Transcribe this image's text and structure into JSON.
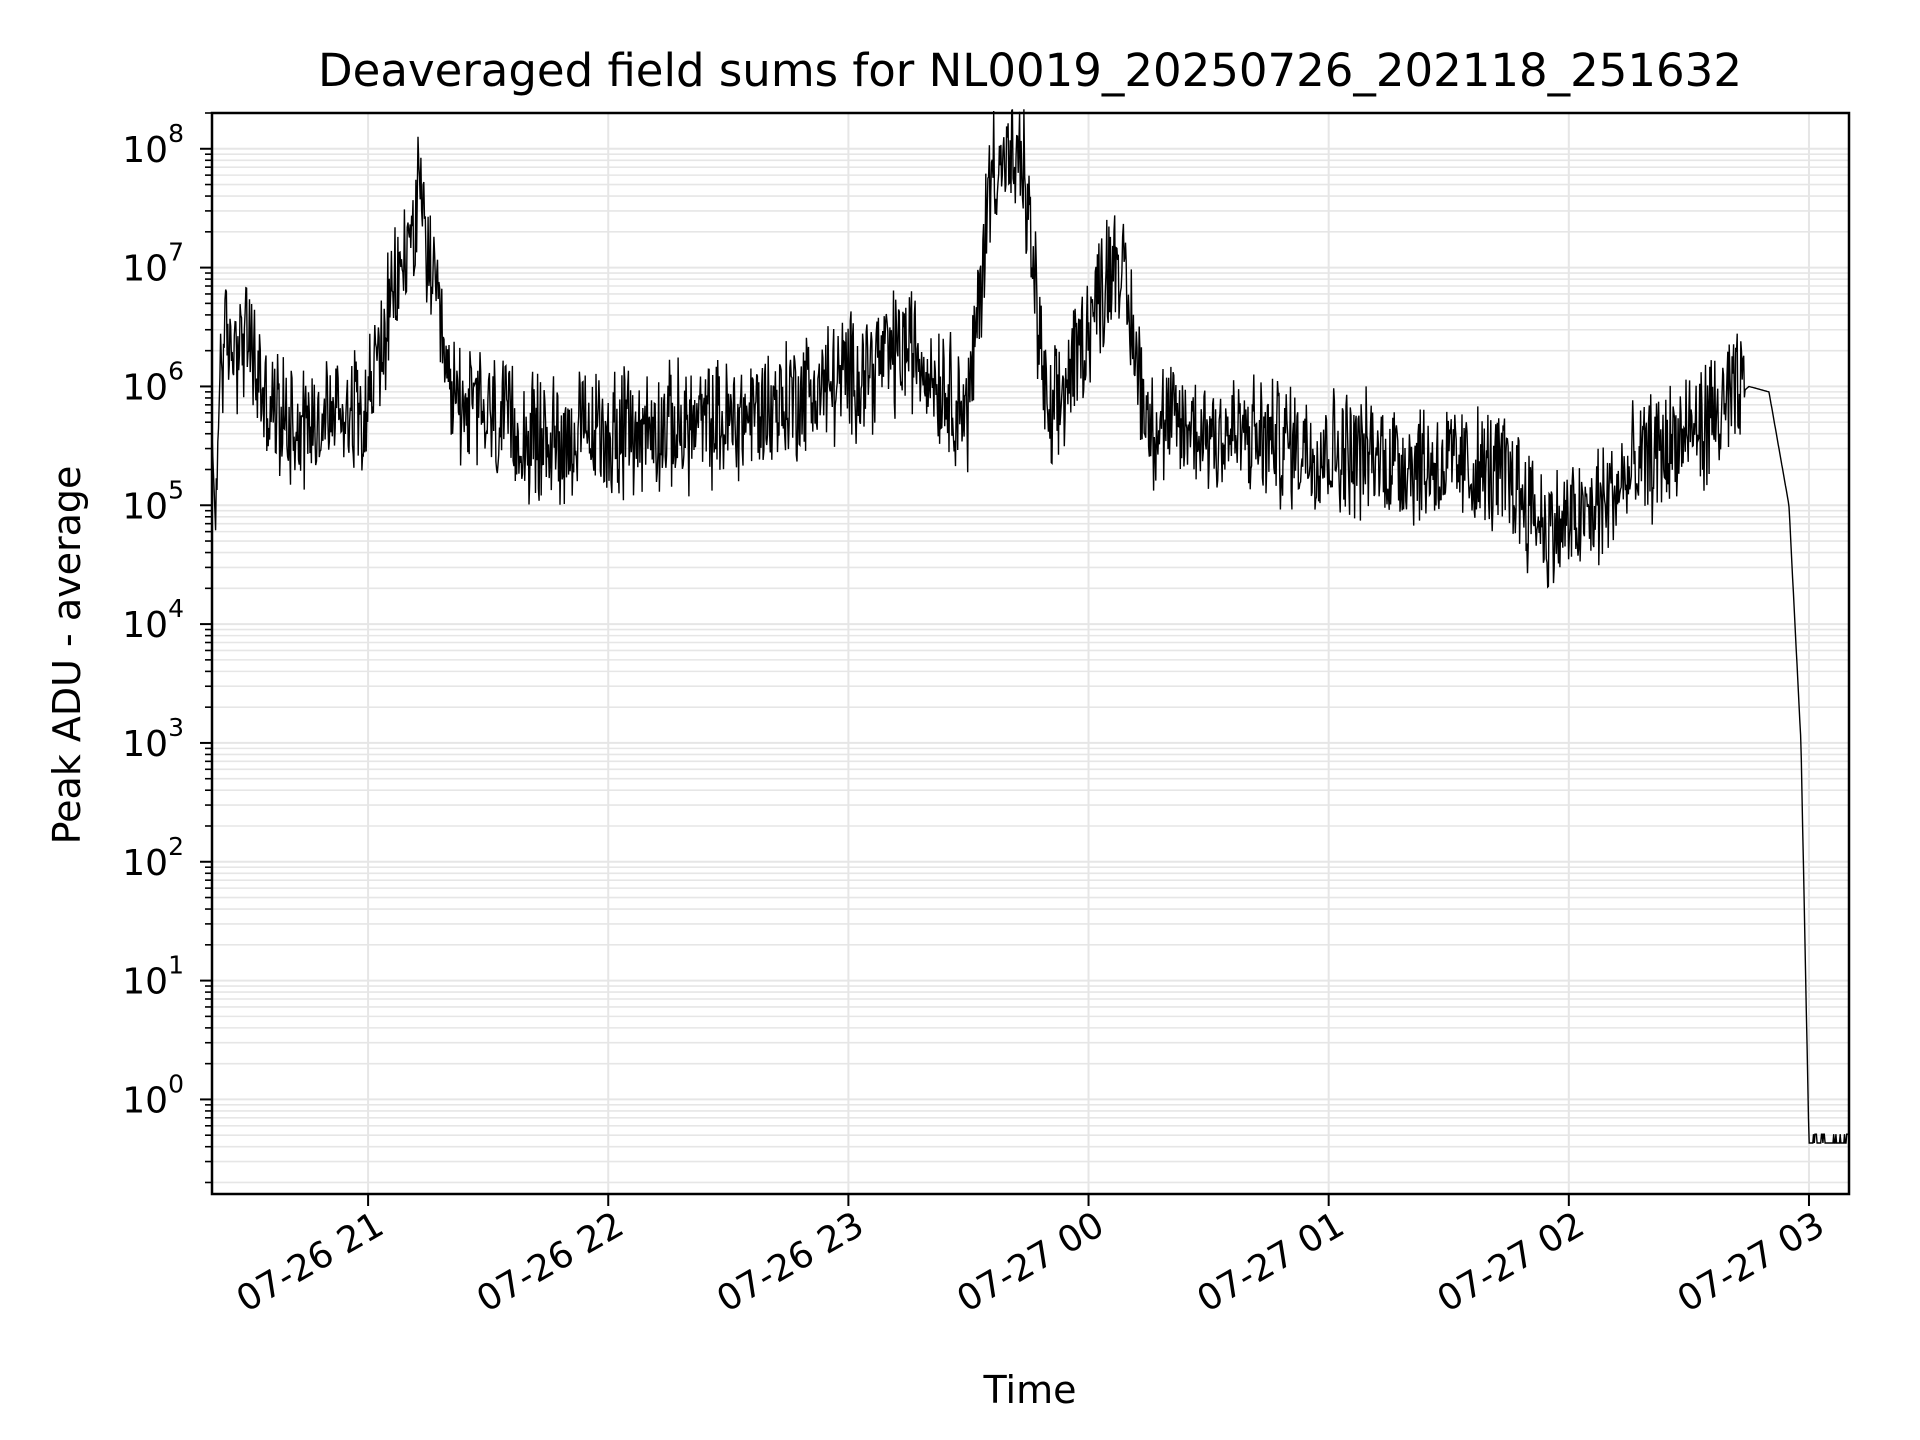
{
  "chart_data": {
    "type": "line",
    "title": "Deaveraged field sums for NL0019_20250726_202118_251632",
    "xlabel": "Time",
    "ylabel": "Peak ADU - average",
    "yscale": "log",
    "grid": true,
    "line_color": "#000000",
    "grid_color": "#e6e6e6",
    "xlim": [
      "07-26 20:21",
      "07-27 03:10"
    ],
    "ylim": [
      0.16,
      200000000
    ],
    "x_ticks": [
      {
        "at": "07-26 21:00",
        "label": "07-26 21"
      },
      {
        "at": "07-26 22:00",
        "label": "07-26 22"
      },
      {
        "at": "07-26 23:00",
        "label": "07-26 23"
      },
      {
        "at": "07-27 00:00",
        "label": "07-27 00"
      },
      {
        "at": "07-27 01:00",
        "label": "07-27 01"
      },
      {
        "at": "07-27 02:00",
        "label": "07-27 02"
      },
      {
        "at": "07-27 03:00",
        "label": "07-27 03"
      }
    ],
    "y_ticks": [
      {
        "value": 1,
        "base": "10",
        "exp": "0"
      },
      {
        "value": 10,
        "base": "10",
        "exp": "1"
      },
      {
        "value": 100,
        "base": "10",
        "exp": "2"
      },
      {
        "value": 1000,
        "base": "10",
        "exp": "3"
      },
      {
        "value": 10000,
        "base": "10",
        "exp": "4"
      },
      {
        "value": 100000,
        "base": "10",
        "exp": "5"
      },
      {
        "value": 1000000,
        "base": "10",
        "exp": "6"
      },
      {
        "value": 10000000,
        "base": "10",
        "exp": "7"
      },
      {
        "value": 100000000,
        "base": "10",
        "exp": "8"
      }
    ],
    "series": [
      {
        "name": "",
        "approximate_shape": [
          [
            "07-26 20:21",
            400000
          ],
          [
            "07-26 20:22",
            50000
          ],
          [
            "07-26 20:23",
            2000000
          ],
          [
            "07-26 20:30",
            2500000
          ],
          [
            "07-26 20:35",
            600000
          ],
          [
            "07-26 20:45",
            500000
          ],
          [
            "07-26 21:00",
            800000
          ],
          [
            "07-26 21:13",
            38000000
          ],
          [
            "07-26 21:20",
            900000
          ],
          [
            "07-26 21:40",
            350000
          ],
          [
            "07-26 22:00",
            400000
          ],
          [
            "07-26 22:30",
            500000
          ],
          [
            "07-26 23:00",
            1200000
          ],
          [
            "07-26 23:15",
            2200000
          ],
          [
            "07-26 23:30",
            600000
          ],
          [
            "07-26 23:36",
            85000000
          ],
          [
            "07-26 23:44",
            60000000
          ],
          [
            "07-26 23:50",
            400000
          ],
          [
            "07-27 00:07",
            15000000
          ],
          [
            "07-27 00:15",
            500000
          ],
          [
            "07-27 00:45",
            350000
          ],
          [
            "07-27 01:15",
            250000
          ],
          [
            "07-27 01:45",
            180000
          ],
          [
            "07-27 01:55",
            60000
          ],
          [
            "07-27 02:05",
            80000
          ],
          [
            "07-27 02:20",
            250000
          ],
          [
            "07-27 02:35",
            500000
          ],
          [
            "07-27 02:45",
            1000000
          ],
          [
            "07-27 02:50",
            900000
          ],
          [
            "07-27 02:55",
            100000
          ],
          [
            "07-27 02:58",
            1000
          ],
          [
            "07-27 03:00",
            0.43
          ],
          [
            "07-27 03:10",
            0.43
          ]
        ]
      }
    ]
  }
}
